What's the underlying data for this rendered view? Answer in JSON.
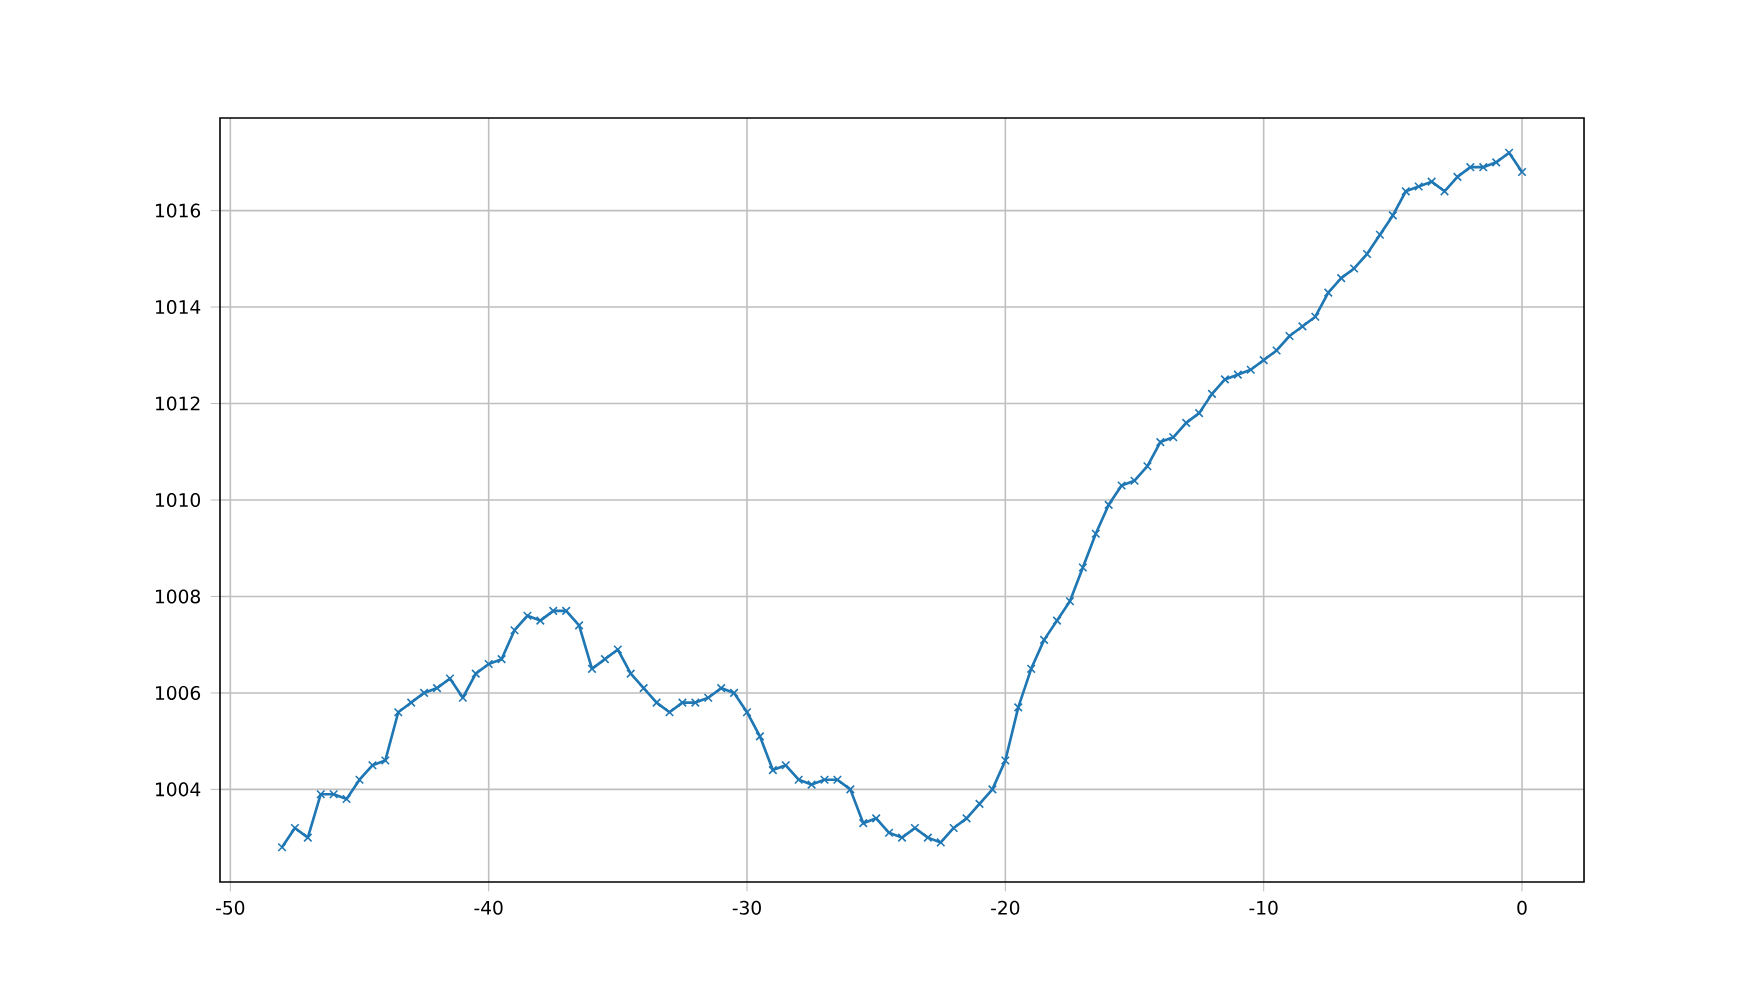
{
  "chart_data": {
    "type": "line",
    "x": [
      -48,
      -47.5,
      -47,
      -46.5,
      -46,
      -45.5,
      -45,
      -44.5,
      -44,
      -43.5,
      -43,
      -42.5,
      -42,
      -41.5,
      -41,
      -40.5,
      -40,
      -39.5,
      -39,
      -38.5,
      -38,
      -37.5,
      -37,
      -36.5,
      -36,
      -35.5,
      -35,
      -34.5,
      -34,
      -33.5,
      -33,
      -32.5,
      -32,
      -31.5,
      -31,
      -30.5,
      -30,
      -29.5,
      -29,
      -28.5,
      -28,
      -27.5,
      -27,
      -26.5,
      -26,
      -25.5,
      -25,
      -24.5,
      -24,
      -23.5,
      -23,
      -22.5,
      -22,
      -21.5,
      -21,
      -20.5,
      -20,
      -19.5,
      -19,
      -18.5,
      -18,
      -17.5,
      -17,
      -16.5,
      -16,
      -15.5,
      -15,
      -14.5,
      -14,
      -13.5,
      -13,
      -12.5,
      -12,
      -11.5,
      -11,
      -10.5,
      -10,
      -9.5,
      -9,
      -8.5,
      -8,
      -7.5,
      -7,
      -6.5,
      -6,
      -5.5,
      -5,
      -4.5,
      -4,
      -3.5,
      -3,
      -2.5,
      -2,
      -1.5,
      -1,
      -0.5,
      0
    ],
    "series": [
      {
        "color": "#1f77b4",
        "values": [
          1002.8,
          1003.2,
          1003.0,
          1003.9,
          1003.9,
          1003.8,
          1004.2,
          1004.5,
          1004.6,
          1005.6,
          1005.8,
          1006.0,
          1006.1,
          1006.3,
          1005.9,
          1006.4,
          1006.6,
          1006.7,
          1007.3,
          1007.6,
          1007.5,
          1007.7,
          1007.7,
          1007.4,
          1006.5,
          1006.7,
          1006.9,
          1006.4,
          1006.1,
          1005.8,
          1005.6,
          1005.8,
          1005.8,
          1005.9,
          1006.1,
          1006.0,
          1005.6,
          1005.1,
          1004.4,
          1004.5,
          1004.2,
          1004.1,
          1004.2,
          1004.2,
          1004.0,
          1003.3,
          1003.4,
          1003.1,
          1003.0,
          1003.2,
          1003.0,
          1002.9,
          1003.2,
          1003.4,
          1003.7,
          1004.0,
          1004.6,
          1005.7,
          1006.5,
          1007.1,
          1007.5,
          1007.9,
          1008.6,
          1009.3,
          1009.9,
          1010.3,
          1010.4,
          1010.7,
          1011.2,
          1011.3,
          1011.6,
          1011.8,
          1012.2,
          1012.5,
          1012.6,
          1012.7,
          1012.9,
          1013.1,
          1013.4,
          1013.6,
          1013.8,
          1014.3,
          1014.6,
          1014.8,
          1015.1,
          1015.5,
          1015.9,
          1016.4,
          1016.5,
          1016.6,
          1016.4,
          1016.7,
          1016.9,
          1016.9,
          1017.0,
          1017.2,
          1016.8
        ]
      }
    ],
    "xlim": [
      -50.4,
      2.4
    ],
    "ylim": [
      1002.08,
      1017.92
    ],
    "xticks": [
      -50,
      -40,
      -30,
      -20,
      -10,
      0
    ],
    "yticks": [
      1004,
      1006,
      1008,
      1010,
      1012,
      1014,
      1016
    ],
    "grid": true,
    "marker": "cross",
    "line_style": "solid"
  }
}
